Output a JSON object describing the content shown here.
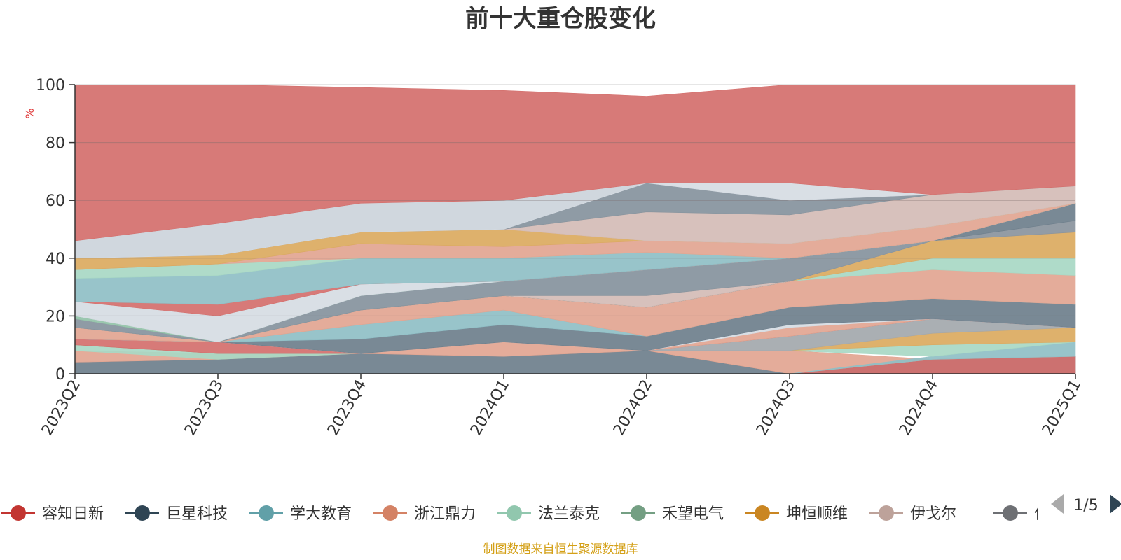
{
  "chart_data": {
    "type": "area",
    "title": "前十大重仓股变化",
    "ylabel": "%",
    "xlabel": "",
    "ylim": [
      0,
      100
    ],
    "yticks": [
      0,
      20,
      40,
      60,
      80,
      100
    ],
    "grid": true,
    "categories": [
      "2023Q2",
      "2023Q3",
      "2023Q4",
      "2024Q1",
      "2024Q2",
      "2024Q3",
      "2024Q4",
      "2025Q1"
    ],
    "layers": [
      {
        "color": "#6e7f8c",
        "lower": [
          0,
          0,
          0,
          0,
          0,
          0,
          0,
          0
        ],
        "upper": [
          4,
          5,
          7,
          6,
          8,
          0,
          5,
          6
        ]
      },
      {
        "color": "#d46f6c",
        "lower": [
          0,
          0,
          0,
          0,
          0,
          0,
          0,
          0
        ],
        "upper": [
          0,
          0,
          0,
          0,
          0,
          0,
          5,
          6
        ]
      },
      {
        "color": "#e2a591",
        "lower": [
          4,
          5,
          7,
          6,
          8,
          0,
          5,
          6
        ],
        "upper": [
          8,
          7,
          7,
          11,
          8,
          8,
          5,
          6
        ]
      },
      {
        "color": "#8fbfc6",
        "lower": [
          0,
          0,
          0,
          0,
          0,
          0,
          5,
          6
        ],
        "upper": [
          0,
          0,
          0,
          0,
          0,
          0,
          6,
          11
        ]
      },
      {
        "color": "#a8d8c4",
        "lower": [
          8,
          5,
          7,
          11,
          8,
          8,
          6,
          11
        ],
        "upper": [
          10,
          7,
          7,
          11,
          8,
          8,
          10,
          11
        ]
      },
      {
        "color": "#dbaa60",
        "lower": [
          10,
          7,
          7,
          11,
          8,
          8,
          10,
          11
        ],
        "upper": [
          10,
          7,
          7,
          11,
          8,
          8,
          14,
          16
        ]
      },
      {
        "color": "#a3a8ad",
        "lower": [
          10,
          7,
          7,
          11,
          8,
          8,
          14,
          16
        ],
        "upper": [
          10,
          7,
          7,
          11,
          8,
          13,
          19,
          16
        ]
      },
      {
        "color": "#d46f6c",
        "lower": [
          10,
          7,
          7,
          11,
          8,
          13,
          19,
          16
        ],
        "upper": [
          12,
          11,
          7,
          11,
          8,
          13,
          19,
          16
        ]
      },
      {
        "color": "#e2a591",
        "lower": [
          12,
          11,
          7,
          11,
          8,
          13,
          19,
          16
        ],
        "upper": [
          12,
          11,
          7,
          11,
          8,
          16,
          19,
          16
        ]
      },
      {
        "color": "#d6dce3",
        "lower": [
          12,
          11,
          7,
          11,
          8,
          16,
          19,
          16
        ],
        "upper": [
          12,
          11,
          7,
          11,
          8,
          17,
          19,
          16
        ]
      },
      {
        "color": "#6e7f8c",
        "lower": [
          12,
          11,
          7,
          11,
          8,
          17,
          19,
          16
        ],
        "upper": [
          12,
          11,
          12,
          17,
          13,
          23,
          26,
          24
        ]
      },
      {
        "color": "#8fbfc6",
        "lower": [
          12,
          11,
          12,
          17,
          13,
          23,
          26,
          24
        ],
        "upper": [
          12,
          11,
          17,
          22,
          13,
          23,
          26,
          24
        ]
      },
      {
        "color": "#e2a591",
        "lower": [
          12,
          11,
          17,
          22,
          13,
          23,
          26,
          24
        ],
        "upper": [
          16,
          11,
          22,
          27,
          23,
          32,
          36,
          34
        ]
      },
      {
        "color": "#a8d8c4",
        "lower": [
          16,
          11,
          22,
          27,
          23,
          32,
          36,
          34
        ],
        "upper": [
          16,
          11,
          22,
          27,
          23,
          32,
          40,
          40
        ]
      },
      {
        "color": "#dbaa60",
        "lower": [
          16,
          11,
          22,
          27,
          23,
          32,
          40,
          40
        ],
        "upper": [
          16,
          11,
          22,
          27,
          23,
          32,
          46,
          49
        ]
      },
      {
        "color": "#8a949d",
        "lower": [
          16,
          11,
          22,
          27,
          23,
          32,
          46,
          49
        ],
        "upper": [
          16,
          11,
          22,
          27,
          23,
          32,
          46,
          53
        ]
      },
      {
        "color": "#6e7f8c",
        "lower": [
          16,
          11,
          22,
          27,
          23,
          32,
          46,
          53
        ],
        "upper": [
          16,
          11,
          22,
          27,
          23,
          32,
          46,
          59
        ]
      },
      {
        "color": "#d4bcb6",
        "lower": [
          16,
          11,
          22,
          27,
          23,
          32,
          46,
          59
        ],
        "upper": [
          16,
          11,
          22,
          27,
          27,
          32,
          46,
          59
        ]
      },
      {
        "color": "#86939d",
        "lower": [
          16,
          11,
          22,
          27,
          27,
          32,
          46,
          59
        ],
        "upper": [
          19,
          11,
          27,
          32,
          36,
          40,
          46,
          59
        ]
      },
      {
        "color": "#93c2a8",
        "lower": [
          19,
          11,
          27,
          32,
          36,
          40,
          46,
          59
        ],
        "upper": [
          20,
          11,
          27,
          32,
          36,
          40,
          46,
          59
        ]
      },
      {
        "color": "#d6dce3",
        "lower": [
          20,
          11,
          27,
          32,
          36,
          40,
          46,
          59
        ],
        "upper": [
          25,
          20,
          31,
          32,
          36,
          40,
          46,
          59
        ]
      },
      {
        "color": "#d46f6c",
        "lower": [
          25,
          20,
          31,
          32,
          36,
          40,
          46,
          59
        ],
        "upper": [
          25,
          24,
          31,
          32,
          36,
          40,
          46,
          59
        ]
      },
      {
        "color": "#8fbfc6",
        "lower": [
          25,
          24,
          31,
          32,
          36,
          40,
          46,
          59
        ],
        "upper": [
          33,
          34,
          40,
          40,
          42,
          40,
          46,
          59
        ]
      },
      {
        "color": "#a8d8c4",
        "lower": [
          33,
          34,
          40,
          40,
          42,
          40,
          46,
          59
        ],
        "upper": [
          36,
          38,
          40,
          40,
          42,
          40,
          46,
          59
        ]
      },
      {
        "color": "#e2a591",
        "lower": [
          36,
          38,
          40,
          40,
          42,
          40,
          46,
          59
        ],
        "upper": [
          36,
          38,
          45,
          44,
          46,
          45,
          51,
          59
        ]
      },
      {
        "color": "#dbaa60",
        "lower": [
          36,
          38,
          45,
          44,
          46,
          45,
          51,
          59
        ],
        "upper": [
          40,
          41,
          49,
          50,
          46,
          45,
          51,
          59
        ]
      },
      {
        "color": "#d4bcb6",
        "lower": [
          40,
          41,
          49,
          50,
          46,
          45,
          51,
          59
        ],
        "upper": [
          40,
          41,
          49,
          50,
          56,
          55,
          62,
          65
        ]
      },
      {
        "color": "#86939d",
        "lower": [
          40,
          41,
          49,
          50,
          56,
          55,
          62,
          65
        ],
        "upper": [
          46,
          52,
          59,
          60,
          66,
          60,
          62,
          65
        ]
      },
      {
        "color": "#d6dce3",
        "lower": [
          40,
          41,
          49,
          50,
          66,
          60,
          62,
          65
        ],
        "upper": [
          46,
          52,
          59,
          60,
          66,
          66,
          62,
          65
        ]
      },
      {
        "color": "#d46f6c",
        "lower": [
          46,
          52,
          59,
          60,
          66,
          66,
          62,
          65
        ],
        "upper": [
          100,
          100,
          99,
          98,
          96,
          100,
          100,
          100
        ]
      }
    ]
  },
  "legend": {
    "items": [
      {
        "name": "容知日新",
        "color": "#c23531"
      },
      {
        "name": "巨星科技",
        "color": "#2f4554"
      },
      {
        "name": "学大教育",
        "color": "#61a0a8"
      },
      {
        "name": "浙江鼎力",
        "color": "#d48265"
      },
      {
        "name": "法兰泰克",
        "color": "#91c7ae"
      },
      {
        "name": "禾望电气",
        "color": "#749f83"
      },
      {
        "name": "坤恒顺维",
        "color": "#ca8622"
      },
      {
        "name": "伊戈尔",
        "color": "#bda29a"
      },
      {
        "name": "仕佳光子",
        "color": "#6e7074"
      }
    ],
    "page": "1/5"
  },
  "footer": {
    "source": "制图数据来自恒生聚源数据库"
  }
}
